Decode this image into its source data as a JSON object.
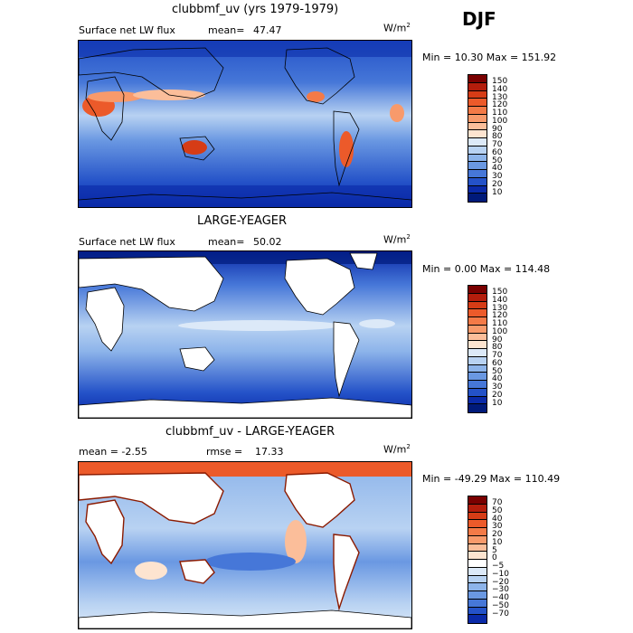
{
  "season": "DJF",
  "units": "W/m",
  "units_exp": "2",
  "panels": [
    {
      "title": "clubbmf_uv (yrs 1979-1979)",
      "left_label": "Surface net LW flux",
      "stat_label": "mean=",
      "stat_value": "47.47",
      "minmax": "Min =  10.30 Max = 151.92",
      "ticks": [
        "150",
        "140",
        "130",
        "120",
        "110",
        "100",
        "90",
        "80",
        "70",
        "60",
        "50",
        "40",
        "30",
        "20",
        "10"
      ]
    },
    {
      "title": "LARGE-YEAGER",
      "left_label": "Surface net LW flux",
      "stat_label": "mean=",
      "stat_value": "50.02",
      "minmax": "Min =   0.00 Max = 114.48",
      "ticks": [
        "150",
        "140",
        "130",
        "120",
        "110",
        "100",
        "90",
        "80",
        "70",
        "60",
        "50",
        "40",
        "30",
        "20",
        "10"
      ]
    },
    {
      "title": "clubbmf_uv - LARGE-YEAGER",
      "left_label": "mean =  -2.55",
      "stat_label": "rmse =",
      "stat_value": "17.33",
      "minmax": "Min = -49.29 Max = 110.49",
      "ticks": [
        "70",
        "50",
        "40",
        "30",
        "20",
        "10",
        "5",
        "0",
        "−5",
        "−10",
        "−20",
        "−30",
        "−40",
        "−50",
        "−70"
      ]
    }
  ],
  "colors": {
    "abs_scale": [
      "#7a0000",
      "#b41d0c",
      "#d63c16",
      "#ec5a2a",
      "#f47a47",
      "#f89a6b",
      "#fbbe9a",
      "#fde4d0",
      "#dce9f8",
      "#b8d2f2",
      "#8db4ea",
      "#6a98e2",
      "#4677d8",
      "#2452c8",
      "#0a2aa8",
      "#001a7a"
    ],
    "diff_scale": [
      "#7a0000",
      "#b41d0c",
      "#d63c16",
      "#ec5a2a",
      "#f47a47",
      "#f89a6b",
      "#fbbe9a",
      "#fde4d0",
      "#ffffff",
      "#dce9f8",
      "#b8d2f2",
      "#8db4ea",
      "#6a98e2",
      "#4677d8",
      "#2452c8",
      "#0a2aa8"
    ]
  }
}
